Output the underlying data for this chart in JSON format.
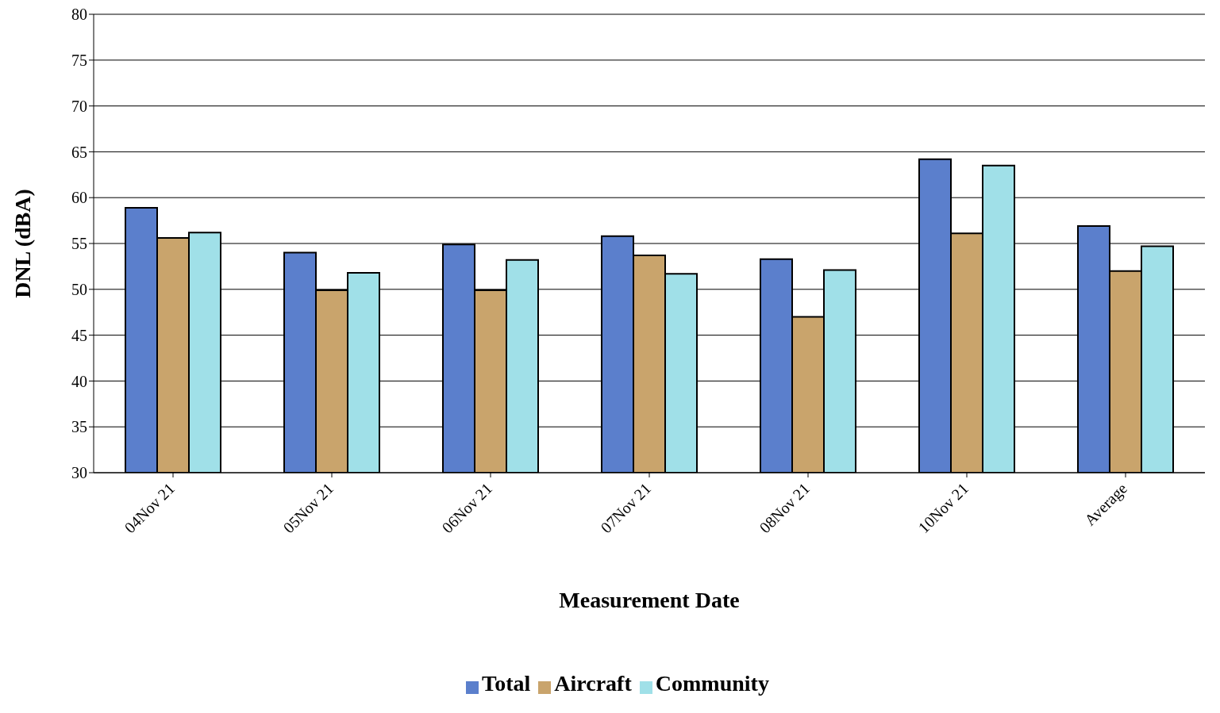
{
  "chart_data": {
    "type": "bar",
    "xlabel": "Measurement Date",
    "ylabel": "DNL (dBA)",
    "categories": [
      "04Nov 21",
      "05Nov 21",
      "06Nov 21",
      "07Nov 21",
      "08Nov 21",
      "10Nov 21",
      "Average"
    ],
    "series": [
      {
        "name": "Total",
        "color": "#5b7fcc",
        "values": [
          58.9,
          54.0,
          54.9,
          55.8,
          53.3,
          64.2,
          56.9
        ]
      },
      {
        "name": "Aircraft",
        "color": "#c9a46c",
        "values": [
          55.6,
          49.9,
          49.9,
          53.7,
          47.0,
          56.1,
          52.0
        ]
      },
      {
        "name": "Community",
        "color": "#a0e0e8",
        "values": [
          56.2,
          51.8,
          53.2,
          51.7,
          52.1,
          63.5,
          54.7
        ]
      }
    ],
    "ylim": [
      30,
      80
    ],
    "yticks": [
      30,
      35,
      40,
      45,
      50,
      55,
      60,
      65,
      70,
      75,
      80
    ],
    "grid": "y",
    "legend": "bottom"
  }
}
